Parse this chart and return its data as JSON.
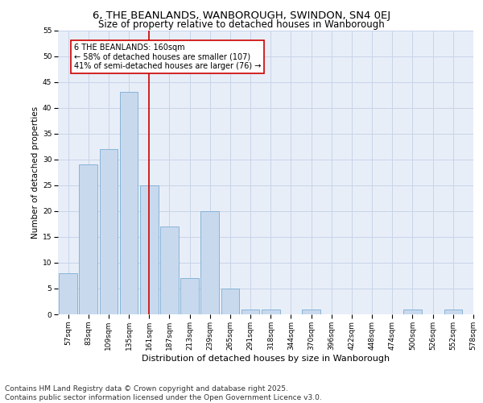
{
  "title1": "6, THE BEANLANDS, WANBOROUGH, SWINDON, SN4 0EJ",
  "title2": "Size of property relative to detached houses in Wanborough",
  "xlabel": "Distribution of detached houses by size in Wanborough",
  "ylabel": "Number of detached properties",
  "bar_values": [
    8,
    29,
    32,
    43,
    25,
    17,
    7,
    20,
    5,
    1,
    1,
    0,
    1,
    0,
    0,
    0,
    0,
    1,
    0,
    1
  ],
  "bar_labels": [
    "57sqm",
    "83sqm",
    "109sqm",
    "135sqm",
    "161sqm",
    "187sqm",
    "213sqm",
    "239sqm",
    "265sqm",
    "291sqm",
    "318sqm",
    "344sqm",
    "370sqm",
    "396sqm",
    "422sqm",
    "448sqm",
    "474sqm",
    "500sqm",
    "526sqm",
    "552sqm",
    "578sqm"
  ],
  "bar_color": "#c8d9ee",
  "bar_edge_color": "#7aadd4",
  "property_line_x": 4,
  "property_line_color": "#cc0000",
  "annotation_box_color": "#cc0000",
  "annotation_text": "6 THE BEANLANDS: 160sqm\n← 58% of detached houses are smaller (107)\n41% of semi-detached houses are larger (76) →",
  "ylim": [
    0,
    55
  ],
  "yticks": [
    0,
    5,
    10,
    15,
    20,
    25,
    30,
    35,
    40,
    45,
    50,
    55
  ],
  "grid_color": "#c8d4e8",
  "bg_color": "#e8eef8",
  "footer_text": "Contains HM Land Registry data © Crown copyright and database right 2025.\nContains public sector information licensed under the Open Government Licence v3.0.",
  "title_fontsize": 9.5,
  "subtitle_fontsize": 8.5,
  "annotation_fontsize": 7,
  "footer_fontsize": 6.5,
  "ylabel_fontsize": 7.5,
  "xlabel_fontsize": 8,
  "tick_fontsize": 6.5
}
